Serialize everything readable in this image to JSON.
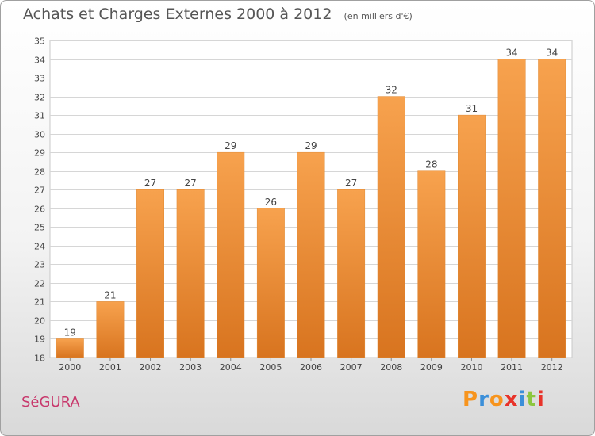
{
  "chart_data": {
    "type": "bar",
    "title": "Achats et Charges Externes 2000 à 2012",
    "unit_note": "(en milliers d'€)",
    "categories": [
      "2000",
      "2001",
      "2002",
      "2003",
      "2004",
      "2005",
      "2006",
      "2007",
      "2008",
      "2009",
      "2010",
      "2011",
      "2012"
    ],
    "values": [
      19,
      21,
      27,
      27,
      29,
      26,
      29,
      27,
      32,
      28,
      31,
      34,
      34
    ],
    "ylim": [
      18,
      35
    ],
    "yticks": [
      18,
      19,
      20,
      21,
      22,
      23,
      24,
      25,
      26,
      27,
      28,
      29,
      30,
      31,
      32,
      33,
      34,
      35
    ],
    "xlabel": "",
    "ylabel": "",
    "grid": true,
    "bar_color_top": "#f7a24e",
    "bar_color_bottom": "#d8741f"
  },
  "footer": {
    "commune": "SéGURA",
    "logo_text": "Proxiti",
    "logo_colors": [
      "#f7941d",
      "#3b8fd9",
      "#f7941d",
      "#e8332a",
      "#3b8fd9",
      "#8cc63f",
      "#e8332a"
    ]
  }
}
